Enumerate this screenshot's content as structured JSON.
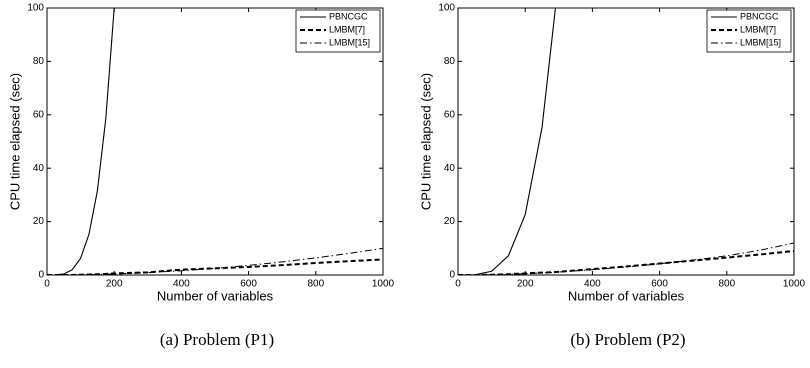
{
  "chart_data": [
    {
      "type": "line",
      "xlabel": "Number of variables",
      "ylabel": "CPU time elapsed (sec)",
      "caption": "(a) Problem (P1)",
      "x": [
        0,
        25,
        50,
        75,
        100,
        125,
        150,
        175,
        200,
        300,
        400,
        500,
        600,
        700,
        800,
        900,
        1000
      ],
      "xlim": [
        0,
        1000
      ],
      "xticks": [
        0,
        200,
        400,
        600,
        800,
        1000
      ],
      "ylim": [
        0,
        100
      ],
      "yticks": [
        0,
        20,
        40,
        60,
        80,
        100
      ],
      "legend": "upper right",
      "series": [
        {
          "name": "PBNCGC",
          "color": "#000000",
          "style": "solid",
          "values": [
            0,
            0.02,
            0.39,
            1.98,
            6.25,
            15.3,
            31.6,
            58.6,
            100,
            null,
            null,
            null,
            null,
            null,
            null,
            null,
            null
          ]
        },
        {
          "name": "LMBM[7]",
          "color": "#000000",
          "style": "dashed",
          "values": [
            0,
            0,
            0,
            0,
            0.1,
            0.2,
            0.3,
            0.4,
            0.6,
            1,
            2,
            2.5,
            3,
            3.7,
            4.5,
            5.2,
            5.8
          ]
        },
        {
          "name": "LMBM[15]",
          "color": "#000000",
          "style": "dashdot",
          "values": [
            0,
            0,
            0,
            0,
            0.1,
            0.15,
            0.2,
            0.3,
            0.4,
            0.9,
            1.6,
            2.5,
            3.6,
            4.9,
            6.4,
            8.1,
            10
          ]
        }
      ]
    },
    {
      "type": "line",
      "xlabel": "Number of variables",
      "ylabel": "CPU time elapsed (sec)",
      "caption": "(b) Problem (P2)",
      "x": [
        0,
        50,
        100,
        150,
        200,
        250,
        290,
        300,
        400,
        500,
        600,
        700,
        800,
        900,
        1000
      ],
      "xlim": [
        0,
        1000
      ],
      "xticks": [
        0,
        200,
        400,
        600,
        800,
        1000
      ],
      "ylim": [
        0,
        100
      ],
      "yticks": [
        0,
        20,
        40,
        60,
        80,
        100
      ],
      "legend": "upper right",
      "series": [
        {
          "name": "PBNCGC",
          "color": "#000000",
          "style": "solid",
          "values": [
            0,
            0.09,
            1.4,
            7.2,
            22.6,
            55.2,
            100,
            null,
            null,
            null,
            null,
            null,
            null,
            null,
            null
          ]
        },
        {
          "name": "LMBM[7]",
          "color": "#000000",
          "style": "dashed",
          "values": [
            0,
            0,
            0.1,
            0.3,
            0.6,
            0.9,
            1.1,
            1.2,
            2.2,
            3.2,
            4.3,
            5.4,
            6.5,
            7.7,
            9
          ]
        },
        {
          "name": "LMBM[15]",
          "color": "#000000",
          "style": "dashdot",
          "values": [
            0,
            0,
            0.1,
            0.2,
            0.5,
            0.8,
            1,
            1.1,
            2,
            3,
            4.2,
            5.6,
            7.2,
            9.3,
            12
          ]
        }
      ]
    }
  ]
}
